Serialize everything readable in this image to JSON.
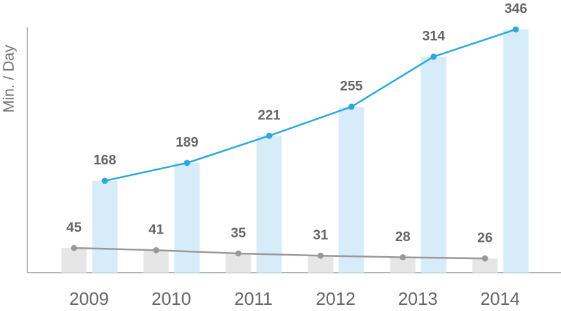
{
  "chart_data": {
    "type": "bar-line",
    "y_label": "Min. / Day",
    "categories": [
      "2009",
      "2010",
      "2011",
      "2012",
      "2013",
      "2014"
    ],
    "series": [
      {
        "color": "#999999",
        "bar_color": "#e6e6e6",
        "values": [
          45,
          41,
          35,
          31,
          28,
          26
        ],
        "axis": "y2"
      },
      {
        "color": "#29a8e0",
        "bar_color": "#d6edf9",
        "values": [
          168,
          189,
          221,
          255,
          314,
          346
        ]
      }
    ],
    "ylim": [
      60,
      350
    ],
    "y2lim": [
      0,
      450
    ],
    "grid": false
  }
}
